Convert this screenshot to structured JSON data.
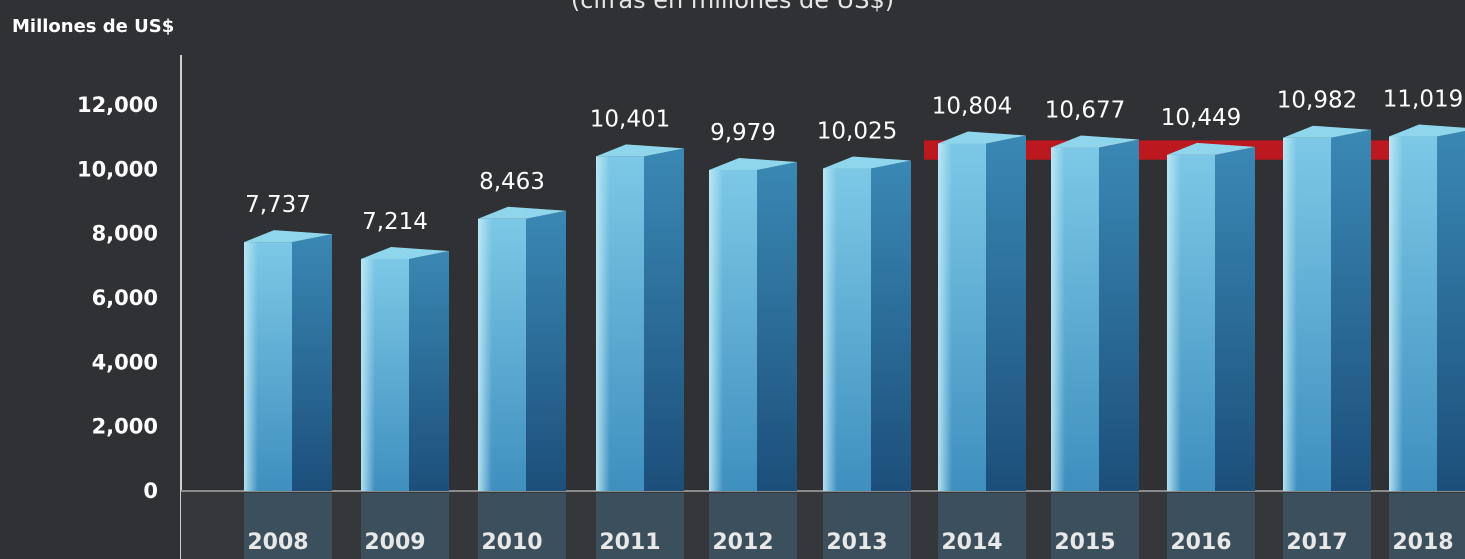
{
  "chart_data": {
    "type": "bar",
    "subtitle": "(cifras en millones de US$)",
    "ylabel": "Millones de US$",
    "categories": [
      "2008",
      "2009",
      "2010",
      "2011",
      "2012",
      "2013",
      "2014",
      "2015",
      "2016",
      "2017",
      "2018"
    ],
    "values": [
      7737,
      7214,
      8463,
      10401,
      9979,
      10025,
      10804,
      10677,
      10449,
      10982,
      11019
    ],
    "value_labels": [
      "7,737",
      "7,214",
      "8,463",
      "10,401",
      "9,979",
      "10,025",
      "10,804",
      "10,677",
      "10,449",
      "10,982",
      "11,019"
    ],
    "y_ticks": [
      0,
      2000,
      4000,
      6000,
      8000,
      10000,
      12000
    ],
    "y_tick_labels": [
      "0",
      "2,000",
      "4,000",
      "6,000",
      "8,000",
      "10,000",
      "12,000"
    ],
    "ylim": [
      0,
      12000
    ],
    "highlight_band": {
      "from_category": "2014",
      "to_category": "2018",
      "y_from": 10300,
      "y_to": 10900,
      "color": "#c8161d"
    },
    "colors": {
      "background": "#2f3134",
      "bar_front": "#5aaed4",
      "bar_top": "#8fd6ec",
      "bar_side": "#2a6d99",
      "text": "#ffffff"
    }
  }
}
